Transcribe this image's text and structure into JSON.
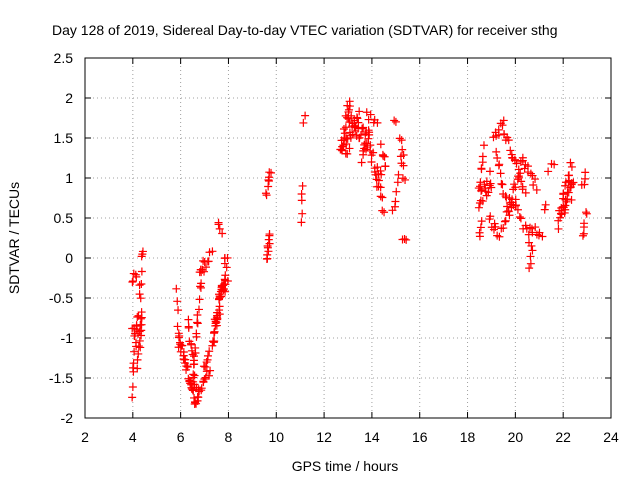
{
  "chart_data": {
    "type": "scatter",
    "title": "Day 128 of 2019, Sidereal Day-to-day VTEC variation (SDTVAR) for receiver sthg",
    "xlabel": "GPS time / hours",
    "ylabel": "SDTVAR / TECUs",
    "xlim": [
      2,
      24
    ],
    "ylim": [
      -2,
      2.5
    ],
    "xticks": [
      "2",
      "4",
      "6",
      "8",
      "10",
      "12",
      "14",
      "16",
      "18",
      "20",
      "22",
      "24"
    ],
    "yticks": [
      "-2",
      "-1.5",
      "-1",
      "-0.5",
      "0",
      "0.5",
      "1",
      "1.5",
      "2",
      "2.5"
    ],
    "grid": true,
    "marker": "+",
    "colors": {
      "points": "#ff0000",
      "grid": "#a0a0a0",
      "axis": "#000000"
    },
    "series": [
      {
        "name": "SDTVAR",
        "segments": [
          {
            "from": [
              3.95,
              -1.7
            ],
            "to": [
              4.45,
              0.15
            ],
            "n": 20,
            "jitter": 0.1
          },
          {
            "from": [
              3.95,
              -0.3
            ],
            "to": [
              4.15,
              -0.2
            ],
            "n": 5,
            "jitter": 0.06
          },
          {
            "from": [
              4.0,
              -1.0
            ],
            "to": [
              4.4,
              -0.8
            ],
            "n": 10,
            "jitter": 0.12
          },
          {
            "from": [
              4.2,
              -1.4
            ],
            "to": [
              4.4,
              -0.7
            ],
            "n": 10,
            "jitter": 0.08
          },
          {
            "from": [
              5.85,
              -0.4
            ],
            "to": [
              5.95,
              -1.1
            ],
            "n": 6,
            "jitter": 0.06
          },
          {
            "from": [
              5.9,
              -1.0
            ],
            "to": [
              6.15,
              -1.25
            ],
            "n": 10,
            "jitter": 0.08
          },
          {
            "from": [
              6.1,
              -1.2
            ],
            "to": [
              6.6,
              -1.8
            ],
            "n": 20,
            "jitter": 0.06
          },
          {
            "from": [
              6.3,
              -0.8
            ],
            "to": [
              6.7,
              -1.75
            ],
            "n": 16,
            "jitter": 0.06
          },
          {
            "from": [
              6.6,
              -1.8
            ],
            "to": [
              7.2,
              -1.4
            ],
            "n": 14,
            "jitter": 0.06
          },
          {
            "from": [
              6.5,
              -1.6
            ],
            "to": [
              6.9,
              0.0
            ],
            "n": 20,
            "jitter": 0.08
          },
          {
            "from": [
              6.8,
              -0.2
            ],
            "to": [
              7.3,
              0.05
            ],
            "n": 10,
            "jitter": 0.06
          },
          {
            "from": [
              7.0,
              -1.4
            ],
            "to": [
              7.2,
              -1.2
            ],
            "n": 6,
            "jitter": 0.05
          },
          {
            "from": [
              7.3,
              -1.1
            ],
            "to": [
              7.6,
              -0.7
            ],
            "n": 10,
            "jitter": 0.06
          },
          {
            "from": [
              7.55,
              0.4
            ],
            "to": [
              7.7,
              0.35
            ],
            "n": 4,
            "jitter": 0.05
          },
          {
            "from": [
              7.4,
              -0.9
            ],
            "to": [
              7.95,
              0.0
            ],
            "n": 26,
            "jitter": 0.16
          },
          {
            "from": [
              7.55,
              -0.7
            ],
            "to": [
              7.95,
              -0.2
            ],
            "n": 12,
            "jitter": 0.12
          },
          {
            "from": [
              9.6,
              0.8
            ],
            "to": [
              9.75,
              1.05
            ],
            "n": 8,
            "jitter": 0.06
          },
          {
            "from": [
              9.6,
              -0.05
            ],
            "to": [
              9.75,
              0.3
            ],
            "n": 10,
            "jitter": 0.06
          },
          {
            "from": [
              11.05,
              0.7
            ],
            "to": [
              11.1,
              0.9
            ],
            "n": 3,
            "jitter": 0.03
          },
          {
            "from": [
              11.05,
              0.45
            ],
            "to": [
              11.1,
              0.55
            ],
            "n": 2,
            "jitter": 0.02
          },
          {
            "from": [
              11.1,
              1.7
            ],
            "to": [
              11.2,
              1.78
            ],
            "n": 2,
            "jitter": 0.02
          },
          {
            "from": [
              12.7,
              1.4
            ],
            "to": [
              13.1,
              2.0
            ],
            "n": 14,
            "jitter": 0.1
          },
          {
            "from": [
              12.7,
              1.3
            ],
            "to": [
              13.5,
              1.7
            ],
            "n": 24,
            "jitter": 0.14
          },
          {
            "from": [
              13.0,
              1.7
            ],
            "to": [
              13.9,
              1.4
            ],
            "n": 20,
            "jitter": 0.14
          },
          {
            "from": [
              13.6,
              1.2
            ],
            "to": [
              13.9,
              1.6
            ],
            "n": 10,
            "jitter": 0.1
          },
          {
            "from": [
              13.8,
              1.8
            ],
            "to": [
              14.2,
              1.7
            ],
            "n": 6,
            "jitter": 0.08
          },
          {
            "from": [
              13.9,
              1.3
            ],
            "to": [
              14.4,
              1.0
            ],
            "n": 12,
            "jitter": 0.1
          },
          {
            "from": [
              14.2,
              1.0
            ],
            "to": [
              14.5,
              0.55
            ],
            "n": 8,
            "jitter": 0.08
          },
          {
            "from": [
              14.4,
              1.4
            ],
            "to": [
              14.6,
              1.1
            ],
            "n": 6,
            "jitter": 0.08
          },
          {
            "from": [
              14.9,
              0.6
            ],
            "to": [
              15.1,
              1.0
            ],
            "n": 6,
            "jitter": 0.06
          },
          {
            "from": [
              14.9,
              1.7
            ],
            "to": [
              15.0,
              1.72
            ],
            "n": 2,
            "jitter": 0.02
          },
          {
            "from": [
              15.2,
              1.5
            ],
            "to": [
              15.35,
              1.3
            ],
            "n": 4,
            "jitter": 0.04
          },
          {
            "from": [
              15.2,
              1.25
            ],
            "to": [
              15.35,
              1.15
            ],
            "n": 3,
            "jitter": 0.03
          },
          {
            "from": [
              15.3,
              1.0
            ],
            "to": [
              15.4,
              0.98
            ],
            "n": 2,
            "jitter": 0.03
          },
          {
            "from": [
              15.3,
              0.25
            ],
            "to": [
              15.4,
              0.2
            ],
            "n": 3,
            "jitter": 0.03
          },
          {
            "from": [
              18.5,
              0.3
            ],
            "to": [
              18.6,
              0.45
            ],
            "n": 4,
            "jitter": 0.04
          },
          {
            "from": [
              18.5,
              0.8
            ],
            "to": [
              18.7,
              1.4
            ],
            "n": 8,
            "jitter": 0.08
          },
          {
            "from": [
              18.5,
              0.7
            ],
            "to": [
              19.0,
              1.0
            ],
            "n": 16,
            "jitter": 0.12
          },
          {
            "from": [
              18.9,
              0.5
            ],
            "to": [
              19.3,
              0.3
            ],
            "n": 8,
            "jitter": 0.06
          },
          {
            "from": [
              19.1,
              1.5
            ],
            "to": [
              19.5,
              1.7
            ],
            "n": 8,
            "jitter": 0.06
          },
          {
            "from": [
              19.5,
              1.6
            ],
            "to": [
              19.9,
              1.3
            ],
            "n": 8,
            "jitter": 0.06
          },
          {
            "from": [
              19.9,
              1.3
            ],
            "to": [
              20.4,
              0.8
            ],
            "n": 10,
            "jitter": 0.06
          },
          {
            "from": [
              19.2,
              1.3
            ],
            "to": [
              19.7,
              0.6
            ],
            "n": 12,
            "jitter": 0.06
          },
          {
            "from": [
              19.7,
              0.6
            ],
            "to": [
              20.3,
              1.2
            ],
            "n": 14,
            "jitter": 0.06
          },
          {
            "from": [
              20.3,
              1.2
            ],
            "to": [
              20.9,
              0.9
            ],
            "n": 10,
            "jitter": 0.06
          },
          {
            "from": [
              19.4,
              0.4
            ],
            "to": [
              20.0,
              0.7
            ],
            "n": 10,
            "jitter": 0.06
          },
          {
            "from": [
              20.0,
              0.7
            ],
            "to": [
              20.6,
              0.2
            ],
            "n": 10,
            "jitter": 0.06
          },
          {
            "from": [
              20.6,
              -0.1
            ],
            "to": [
              20.7,
              0.2
            ],
            "n": 5,
            "jitter": 0.05
          },
          {
            "from": [
              20.6,
              0.4
            ],
            "to": [
              21.1,
              0.3
            ],
            "n": 8,
            "jitter": 0.06
          },
          {
            "from": [
              21.2,
              0.6
            ],
            "to": [
              21.3,
              0.65
            ],
            "n": 2,
            "jitter": 0.04
          },
          {
            "from": [
              21.4,
              1.1
            ],
            "to": [
              21.6,
              1.2
            ],
            "n": 3,
            "jitter": 0.04
          },
          {
            "from": [
              21.8,
              0.4
            ],
            "to": [
              22.4,
              1.1
            ],
            "n": 20,
            "jitter": 0.18
          },
          {
            "from": [
              21.9,
              0.6
            ],
            "to": [
              22.4,
              0.9
            ],
            "n": 16,
            "jitter": 0.16
          },
          {
            "from": [
              22.8,
              0.9
            ],
            "to": [
              22.95,
              1.05
            ],
            "n": 4,
            "jitter": 0.05
          },
          {
            "from": [
              22.8,
              0.25
            ],
            "to": [
              22.95,
              0.6
            ],
            "n": 6,
            "jitter": 0.06
          }
        ]
      }
    ]
  }
}
